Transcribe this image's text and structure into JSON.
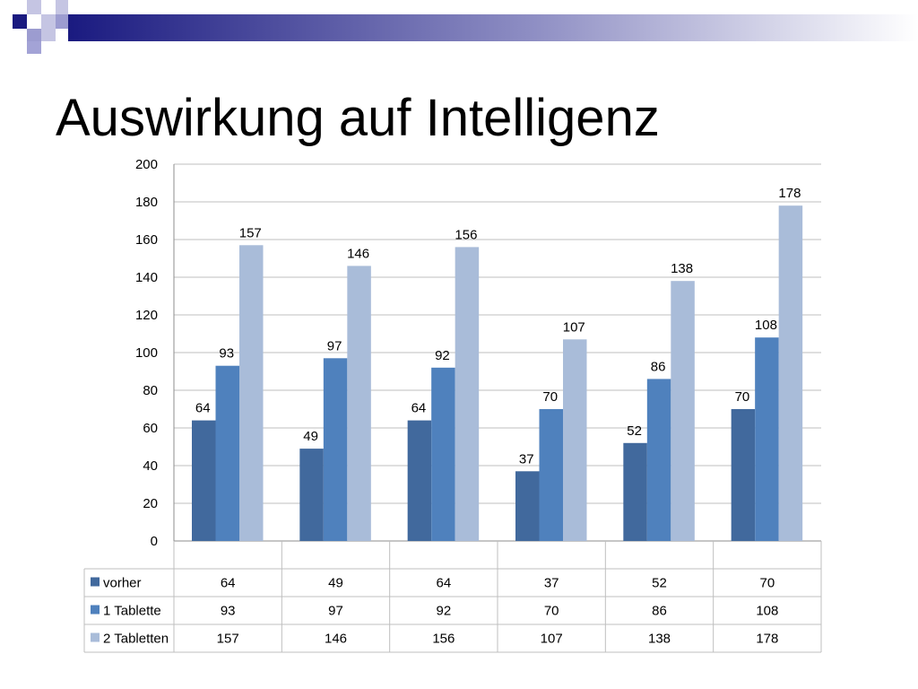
{
  "slide": {
    "title": "Auswirkung auf Intelligenz"
  },
  "colors": {
    "decoration_dark": "#1a1a80",
    "decoration_light": "#a3a3d6",
    "grid": "#bfbfbf",
    "axis": "#8c8c8c"
  },
  "chart_data": {
    "type": "bar",
    "title": "",
    "xlabel": "",
    "ylabel": "",
    "ylim": [
      0,
      200
    ],
    "yticks": [
      0,
      20,
      40,
      60,
      80,
      100,
      120,
      140,
      160,
      180,
      200
    ],
    "grid": true,
    "legend": "data-table-left",
    "categories": [
      "",
      "",
      "",
      "",
      "",
      ""
    ],
    "series": [
      {
        "name": "vorher",
        "color": "#41699d",
        "values": [
          64,
          49,
          64,
          37,
          52,
          70
        ]
      },
      {
        "name": "1 Tablette",
        "color": "#4f81bd",
        "values": [
          93,
          97,
          92,
          70,
          86,
          108
        ]
      },
      {
        "name": "2 Tabletten",
        "color": "#a9bcd9",
        "values": [
          157,
          146,
          156,
          107,
          138,
          178
        ]
      }
    ]
  }
}
